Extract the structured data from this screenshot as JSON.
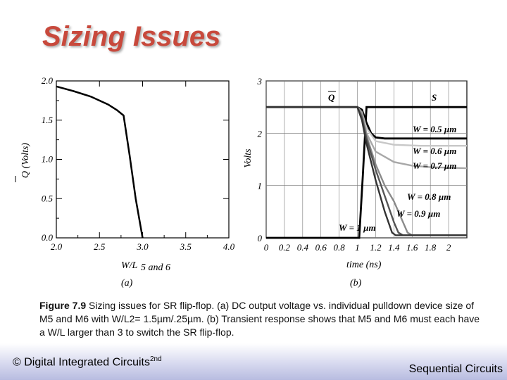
{
  "title": "Sizing Issues",
  "panel_a_tag": "(a)",
  "panel_b_tag": "(b)",
  "caption": {
    "label": "Figure 7.9",
    "text": "Sizing issues for SR flip-flop. (a) DC output voltage vs. individual pulldown device size of M5 and M6 with W/L2= 1.5µm/.25µm. (b) Transient response shows that M5 and M6 must each have a W/L larger than 3 to switch the SR flip-flop."
  },
  "footer": {
    "left": "© Digital Integrated Circuits",
    "left_sup": "2nd",
    "right": "Sequential Circuits"
  },
  "chart_data": [
    {
      "type": "line",
      "xlabel": "W/L",
      "xlabel_sub": "5 and 6",
      "ylabel": "Q (Volts)",
      "xlim": [
        2.0,
        4.0
      ],
      "ylim": [
        0.0,
        2.0
      ],
      "xticks": [
        "2.0",
        "2.5",
        "3.0",
        "3.5",
        "4.0"
      ],
      "yticks": [
        "0.0",
        "0.5",
        "1.0",
        "1.5",
        "2.0"
      ],
      "grid": false,
      "series": [
        {
          "x": [
            2.0,
            2.2,
            2.4,
            2.6,
            2.7,
            2.78,
            2.85,
            2.92,
            3.0
          ],
          "y": [
            1.93,
            1.87,
            1.8,
            1.7,
            1.63,
            1.56,
            1.05,
            0.5,
            0.0
          ]
        }
      ]
    },
    {
      "type": "line",
      "xlabel": "time (ns)",
      "ylabel": "Volts",
      "xlim": [
        0,
        2.2
      ],
      "ylim": [
        0,
        3
      ],
      "xticks": [
        "0",
        "0.2",
        "0.4",
        "0.6",
        "0.8",
        "1",
        "1.2",
        "1.4",
        "1.6",
        "1.8",
        "2"
      ],
      "yticks": [
        "0",
        "1",
        "2",
        "3"
      ],
      "grid": true,
      "annotations": [
        "Q",
        "S",
        "W = 0.5 µm",
        "W = 0.6 µm",
        "W = 0.7 µm",
        "W = 0.8 µm",
        "W = 0.9 µm",
        "W = 1 µm"
      ],
      "series": [
        {
          "name": "S",
          "color": "#000000",
          "x": [
            0,
            1.02,
            1.06,
            1.1,
            1.15,
            2.2
          ],
          "y": [
            0,
            0,
            1.2,
            2.5,
            2.5,
            2.5
          ]
        },
        {
          "name": "W = 0.5 µm",
          "color": "#000000",
          "x": [
            0,
            1.0,
            1.05,
            1.1,
            1.15,
            1.2,
            1.3,
            2.2
          ],
          "y": [
            2.5,
            2.5,
            2.45,
            2.2,
            2.0,
            1.92,
            1.9,
            1.9
          ]
        },
        {
          "name": "W = 0.6 µm",
          "color": "#c8c8c8",
          "x": [
            0,
            1.0,
            1.05,
            1.1,
            1.2,
            1.4,
            1.7,
            2.2
          ],
          "y": [
            2.5,
            2.5,
            2.4,
            2.1,
            1.85,
            1.78,
            1.76,
            1.76
          ]
        },
        {
          "name": "W = 0.7 µm",
          "color": "#a8a8a8",
          "x": [
            0,
            1.0,
            1.05,
            1.1,
            1.2,
            1.4,
            1.6,
            1.8,
            2.2
          ],
          "y": [
            2.5,
            2.5,
            2.4,
            2.0,
            1.65,
            1.45,
            1.38,
            1.35,
            1.33
          ]
        },
        {
          "name": "W = 0.8 µm",
          "color": "#8a8a8a",
          "x": [
            0,
            1.0,
            1.05,
            1.1,
            1.2,
            1.3,
            1.4,
            1.5,
            1.55,
            1.6,
            2.2
          ],
          "y": [
            2.5,
            2.5,
            2.35,
            1.95,
            1.4,
            1.0,
            0.7,
            0.3,
            0.1,
            0.05,
            0.05
          ]
        },
        {
          "name": "W = 0.9 µm",
          "color": "#555555",
          "x": [
            0,
            1.0,
            1.05,
            1.1,
            1.2,
            1.3,
            1.4,
            1.45,
            1.5,
            2.2
          ],
          "y": [
            2.5,
            2.5,
            2.3,
            1.9,
            1.3,
            0.8,
            0.3,
            0.1,
            0.05,
            0.05
          ]
        },
        {
          "name": "W = 1 µm",
          "color": "#333333",
          "x": [
            0,
            1.0,
            1.05,
            1.1,
            1.2,
            1.3,
            1.38,
            1.42,
            2.2
          ],
          "y": [
            2.5,
            2.5,
            2.25,
            1.8,
            1.1,
            0.5,
            0.1,
            0.05,
            0.05
          ]
        }
      ]
    }
  ]
}
